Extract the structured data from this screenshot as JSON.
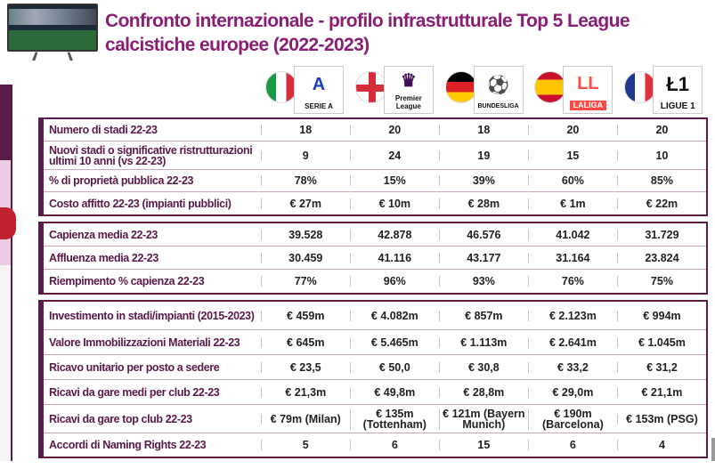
{
  "title": "Confronto internazionale - profilo infrastrutturale Top 5 League calcistiche europee (2022-2023)",
  "leagues": [
    {
      "name": "SERIE A",
      "flag": "italy",
      "icon": "serie-a-logo",
      "glyph": "A",
      "color": "#1a3dbd"
    },
    {
      "name": "Premier League",
      "flag": "england",
      "icon": "premier-league-logo",
      "glyph": "♛",
      "color": "#3d0c55"
    },
    {
      "name": "BUNDESLIGA",
      "flag": "germany",
      "icon": "bundesliga-logo",
      "glyph": "⚽",
      "color": "#d20515"
    },
    {
      "name": "LALIGA",
      "flag": "spain",
      "icon": "laliga-logo",
      "glyph": "LL",
      "color": "#ff4b44"
    },
    {
      "name": "LIGUE 1",
      "flag": "france",
      "icon": "ligue-1-logo",
      "glyph": "Ł1",
      "color": "#111111"
    }
  ],
  "groups": [
    {
      "rows": [
        {
          "label": "Numero di stadi 22-23",
          "values": [
            "18",
            "20",
            "18",
            "20",
            "20"
          ],
          "h": "r1"
        },
        {
          "label": "Nuovi stadi o significative ristrutturazioni ultimi 10 anni (vs 22-23)",
          "values": [
            "9",
            "24",
            "19",
            "15",
            "10"
          ],
          "h": "r2"
        },
        {
          "label": "% di proprietà pubblica 22-23",
          "values": [
            "78%",
            "15%",
            "39%",
            "60%",
            "85%"
          ],
          "h": "r1"
        },
        {
          "label": "Costo affitto 22-23 (impianti pubblici)",
          "values": [
            "€ 27m",
            "€ 10m",
            "€ 28m",
            "€ 1m",
            "€ 22m"
          ],
          "h": "r1"
        }
      ]
    },
    {
      "rows": [
        {
          "label": "Capienza media 22-23",
          "values": [
            "39.528",
            "42.878",
            "46.576",
            "41.042",
            "31.729"
          ],
          "h": "r3"
        },
        {
          "label": "Affluenza media 22-23",
          "values": [
            "30.459",
            "41.116",
            "43.177",
            "31.164",
            "23.824"
          ],
          "h": "r3"
        },
        {
          "label": "Riempimento % capienza 22-23",
          "values": [
            "77%",
            "96%",
            "93%",
            "76%",
            "75%"
          ],
          "h": "r3"
        }
      ]
    },
    {
      "rows": [
        {
          "label": "Investimento in stadi/impianti (2015-2023)",
          "values": [
            "€ 459m",
            "€ 4.082m",
            "€ 857m",
            "€ 2.123m",
            "€ 994m"
          ],
          "h": "r2"
        },
        {
          "label": "Valore Immobilizzazioni Materiali 22-23",
          "values": [
            "€ 645m",
            "€ 5.465m",
            "€ 1.113m",
            "€ 2.641m",
            "€ 1.045m"
          ],
          "h": "r4"
        },
        {
          "label": "Ricavo unitario per posto a sedere",
          "values": [
            "€ 23,5",
            "€ 50,0",
            "€ 30,8",
            "€ 33,2",
            "€ 31,2"
          ],
          "h": "r4"
        },
        {
          "label": "Ricavi da gare medi per club 22-23",
          "values": [
            "€ 21,3m",
            "€ 49,8m",
            "€ 28,8m",
            "€ 29,0m",
            "€ 21,1m"
          ],
          "h": "r4"
        },
        {
          "label": "Ricavi da gare top club 22-23",
          "values": [
            "€ 79m (Milan)",
            "€ 135m (Tottenham)",
            "€ 121m (Bayern Munich)",
            "€ 190m (Barcelona)",
            "€ 153m (PSG)"
          ],
          "h": "r2"
        },
        {
          "label": "Accordi di Naming Rights 22-23",
          "values": [
            "5",
            "6",
            "15",
            "6",
            "4"
          ],
          "h": "r3"
        }
      ]
    }
  ]
}
